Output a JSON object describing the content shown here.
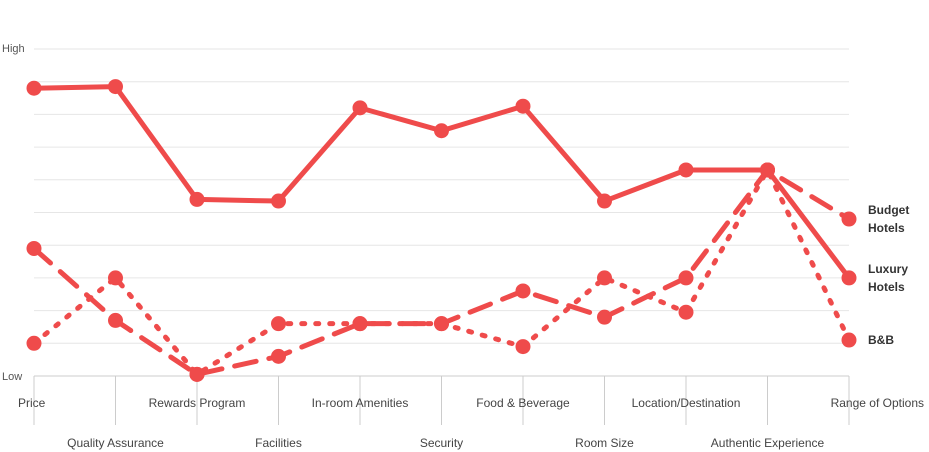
{
  "chart_data": {
    "type": "line",
    "title": "",
    "xlabel": "",
    "ylabel": "",
    "y_axis_labels": {
      "high": "High",
      "low": "Low"
    },
    "ylim": [
      0,
      10
    ],
    "grid": true,
    "legend_position": "right (end-of-line labels)",
    "color": "#ef4b4b",
    "categories": [
      "Price",
      "Quality Assurance",
      "Rewards Program",
      "Facilities",
      "In-room Amenities",
      "Security",
      "Food & Beverage",
      "Room Size",
      "Location/Destination",
      "Authentic Experience",
      "Range of Options"
    ],
    "series": [
      {
        "name": "Budget Hotels",
        "label_lines": [
          "Budget",
          "Hotels"
        ],
        "dash": "dashed",
        "values": [
          3.9,
          1.7,
          0.05,
          0.6,
          1.6,
          1.6,
          2.6,
          1.8,
          3.0,
          6.3,
          4.8
        ]
      },
      {
        "name": "Luxury Hotels",
        "label_lines": [
          "Luxury",
          "Hotels"
        ],
        "dash": "solid",
        "values": [
          8.8,
          8.85,
          5.4,
          5.35,
          8.2,
          7.5,
          8.25,
          5.35,
          6.3,
          6.3,
          3.0
        ]
      },
      {
        "name": "B&B",
        "label_lines": [
          "B&B"
        ],
        "dash": "dotted",
        "values": [
          1.0,
          3.0,
          0.05,
          1.6,
          1.6,
          1.6,
          0.9,
          3.0,
          1.95,
          6.3,
          1.1
        ]
      }
    ]
  }
}
